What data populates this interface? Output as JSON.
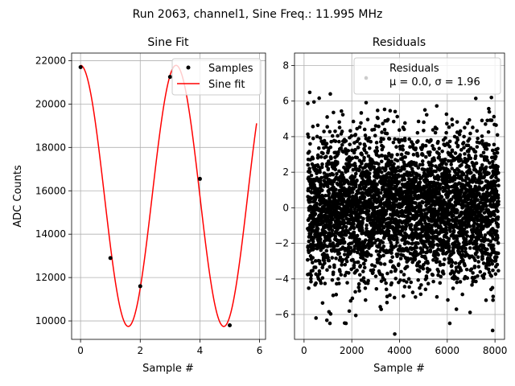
{
  "suptitle": "Run 2063, channel1, Sine Freq.: 11.995 MHz",
  "chart_data": [
    {
      "type": "scatter+line",
      "title": "Sine Fit",
      "xlabel": "Sample #",
      "ylabel": "ADC Counts",
      "xlim": [
        -0.3,
        6.2
      ],
      "ylim": [
        9150,
        22350
      ],
      "xticks": [
        0,
        2,
        4,
        6
      ],
      "yticks": [
        10000,
        12000,
        14000,
        16000,
        18000,
        20000,
        22000
      ],
      "grid": true,
      "legend": {
        "placement": "upper right",
        "entries": [
          "Samples",
          "Sine fit"
        ]
      },
      "series": [
        {
          "name": "Samples",
          "kind": "scatter",
          "color": "#000000",
          "x": [
            0,
            1,
            2,
            3,
            4,
            5
          ],
          "y": [
            21700,
            12900,
            11600,
            21250,
            16550,
            9800
          ]
        },
        {
          "name": "Sine fit",
          "kind": "line",
          "color": "#ff0000",
          "x_range": [
            0,
            5.9
          ],
          "model": {
            "offset": 15765,
            "amplitude": 6020,
            "period": 3.2,
            "phase_peak_x": 0.0
          }
        }
      ]
    },
    {
      "type": "scatter",
      "title": "Residuals",
      "xlabel": "Sample #",
      "ylabel": "",
      "xlim": [
        -400,
        8400
      ],
      "ylim": [
        -7.4,
        8.7
      ],
      "xticks": [
        0,
        2000,
        4000,
        6000,
        8000
      ],
      "yticks": [
        -6,
        -4,
        -2,
        0,
        2,
        4,
        6,
        8
      ],
      "grid": true,
      "legend": {
        "placement": "upper right",
        "entries": [
          "Residuals",
          "μ = 0.0, σ = 1.96"
        ]
      },
      "series": [
        {
          "name": "Residuals",
          "color": "#000000",
          "n_points": 8000,
          "mean": 0.0,
          "std": 1.96,
          "notable_points": [
            {
              "x": 3800,
              "y": -7.1
            },
            {
              "x": 2600,
              "y": 7.3
            },
            {
              "x": 1100,
              "y": 6.4
            },
            {
              "x": 7900,
              "y": -6.9
            },
            {
              "x": 500,
              "y": -6.2
            },
            {
              "x": 7850,
              "y": 6.2
            }
          ]
        }
      ]
    }
  ]
}
